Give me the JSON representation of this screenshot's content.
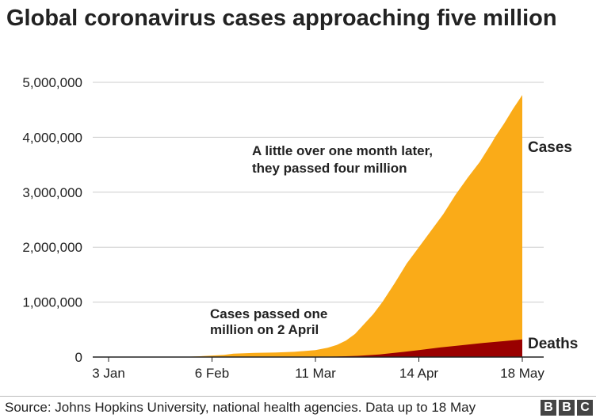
{
  "title": "Global coronavirus cases approaching five million",
  "source": "Source: Johns Hopkins University, national health agencies. Data up to 18 May",
  "logo": [
    "B",
    "B",
    "C"
  ],
  "colors": {
    "cases": "#faab18",
    "deaths": "#990000",
    "grid": "#cccccc",
    "axis": "#222222"
  },
  "chart_data": {
    "type": "area",
    "title": "Global coronavirus cases approaching five million",
    "xlabel": "",
    "ylabel": "",
    "ylim": [
      0,
      5000000
    ],
    "yticks": [
      0,
      1000000,
      2000000,
      3000000,
      4000000,
      5000000
    ],
    "ytick_labels": [
      "0",
      "1,000,000",
      "2,000,000",
      "3,000,000",
      "4,000,000",
      "5,000,000"
    ],
    "xlim": [
      "2020-01-03",
      "2020-05-18"
    ],
    "xticks": [
      "2020-01-03",
      "2020-02-06",
      "2020-03-11",
      "2020-04-14",
      "2020-05-18"
    ],
    "xtick_labels": [
      "3 Jan",
      "6 Feb",
      "11 Mar",
      "14 Apr",
      "18 May"
    ],
    "grid": "horizontal",
    "series": [
      {
        "name": "Cases",
        "color": "#faab18",
        "points": [
          [
            "2020-01-03",
            0
          ],
          [
            "2020-01-22",
            600
          ],
          [
            "2020-01-29",
            6000
          ],
          [
            "2020-02-03",
            17000
          ],
          [
            "2020-02-10",
            40000
          ],
          [
            "2020-02-13",
            60000
          ],
          [
            "2020-02-20",
            76000
          ],
          [
            "2020-02-27",
            83000
          ],
          [
            "2020-03-04",
            95000
          ],
          [
            "2020-03-11",
            126000
          ],
          [
            "2020-03-15",
            170000
          ],
          [
            "2020-03-18",
            220000
          ],
          [
            "2020-03-21",
            300000
          ],
          [
            "2020-03-24",
            420000
          ],
          [
            "2020-03-27",
            600000
          ],
          [
            "2020-03-30",
            780000
          ],
          [
            "2020-04-02",
            1000000
          ],
          [
            "2020-04-06",
            1340000
          ],
          [
            "2020-04-10",
            1700000
          ],
          [
            "2020-04-14",
            2000000
          ],
          [
            "2020-04-18",
            2300000
          ],
          [
            "2020-04-22",
            2600000
          ],
          [
            "2020-04-26",
            2950000
          ],
          [
            "2020-04-30",
            3260000
          ],
          [
            "2020-05-04",
            3550000
          ],
          [
            "2020-05-08",
            3900000
          ],
          [
            "2020-05-09",
            4000000
          ],
          [
            "2020-05-12",
            4250000
          ],
          [
            "2020-05-15",
            4520000
          ],
          [
            "2020-05-18",
            4770000
          ]
        ]
      },
      {
        "name": "Deaths",
        "color": "#990000",
        "points": [
          [
            "2020-01-03",
            0
          ],
          [
            "2020-02-10",
            900
          ],
          [
            "2020-03-04",
            3300
          ],
          [
            "2020-03-11",
            4600
          ],
          [
            "2020-03-18",
            9000
          ],
          [
            "2020-03-25",
            21000
          ],
          [
            "2020-04-01",
            47000
          ],
          [
            "2020-04-08",
            88000
          ],
          [
            "2020-04-14",
            125000
          ],
          [
            "2020-04-21",
            175000
          ],
          [
            "2020-04-28",
            215000
          ],
          [
            "2020-05-05",
            255000
          ],
          [
            "2020-05-12",
            290000
          ],
          [
            "2020-05-18",
            320000
          ]
        ]
      }
    ],
    "annotations": [
      {
        "lines": [
          "A little over one month later,",
          "they passed four million"
        ]
      },
      {
        "lines": [
          "Cases passed one",
          "million on 2 April"
        ]
      }
    ]
  }
}
